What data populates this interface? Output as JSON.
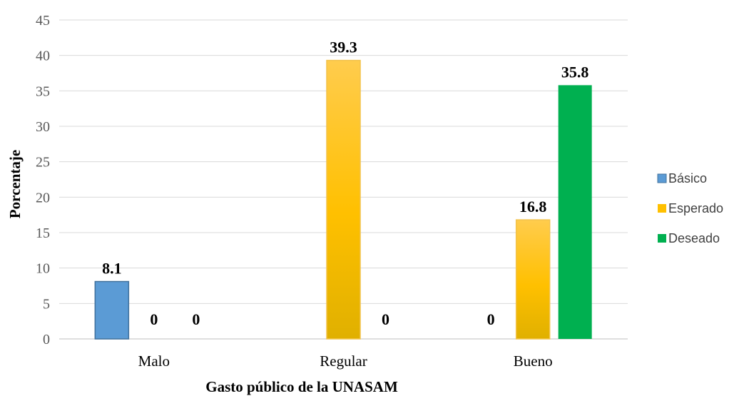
{
  "chart_data": {
    "type": "bar",
    "categories": [
      "Malo",
      "Regular",
      "Bueno"
    ],
    "series": [
      {
        "name": "Básico",
        "values": [
          8.1,
          0,
          0
        ],
        "labels": [
          "8.1",
          "",
          "0"
        ],
        "color": "#5b9bd5"
      },
      {
        "name": "Esperado",
        "values": [
          0,
          39.3,
          16.8
        ],
        "labels": [
          "0",
          "39.3",
          "16.8"
        ],
        "color": "#ffc000"
      },
      {
        "name": "Deseado",
        "values": [
          0,
          0,
          35.8
        ],
        "labels": [
          "0",
          "0",
          "35.8"
        ],
        "color": "#00b050"
      }
    ],
    "xlabel": "Gasto público  de la UNASAM",
    "ylabel": "Porcentaje",
    "ylim": [
      0,
      45
    ],
    "yticks": [
      "0",
      "5",
      "10",
      "15",
      "20",
      "25",
      "30",
      "35",
      "40",
      "45"
    ],
    "grid": true,
    "legend_position": "right"
  }
}
